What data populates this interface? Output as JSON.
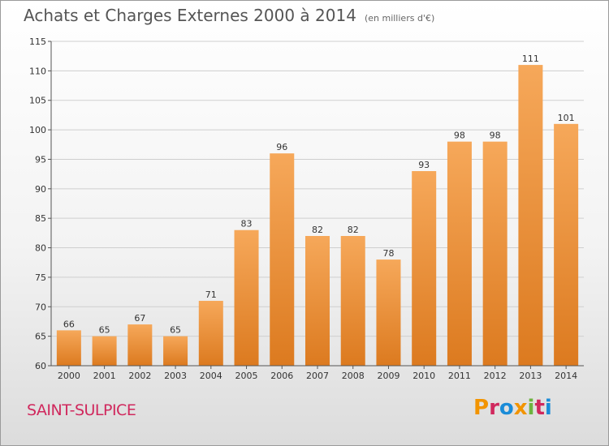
{
  "header": {
    "title": "Achats et Charges Externes 2000 à 2014",
    "unit": "(en milliers d'€)"
  },
  "footer": {
    "city": "SAINT-SULPICE",
    "logo_text": "Proxiti",
    "logo_colors": [
      "#f29400",
      "#d0285d",
      "#1a8cd8",
      "#f29400",
      "#6db33f",
      "#d0285d",
      "#1a8cd8"
    ]
  },
  "colors": {
    "bar_light": "#f6a85a",
    "bar_dark": "#dc7a1f",
    "city": "#d0285d",
    "grid": "#cfcfcf"
  },
  "chart_data": {
    "type": "bar",
    "title": "Achats et Charges Externes 2000 à 2014",
    "subtitle": "(en milliers d'€)",
    "xlabel": "",
    "ylabel": "",
    "categories": [
      "2000",
      "2001",
      "2002",
      "2003",
      "2004",
      "2005",
      "2006",
      "2007",
      "2008",
      "2009",
      "2010",
      "2011",
      "2012",
      "2013",
      "2014"
    ],
    "values": [
      66,
      65,
      67,
      65,
      71,
      83,
      96,
      82,
      82,
      78,
      93,
      98,
      98,
      111,
      101
    ],
    "ylim": [
      60,
      115
    ],
    "yticks": [
      60,
      65,
      70,
      75,
      80,
      85,
      90,
      95,
      100,
      105,
      110,
      115
    ],
    "grid": "horizontal",
    "legend": "none"
  }
}
